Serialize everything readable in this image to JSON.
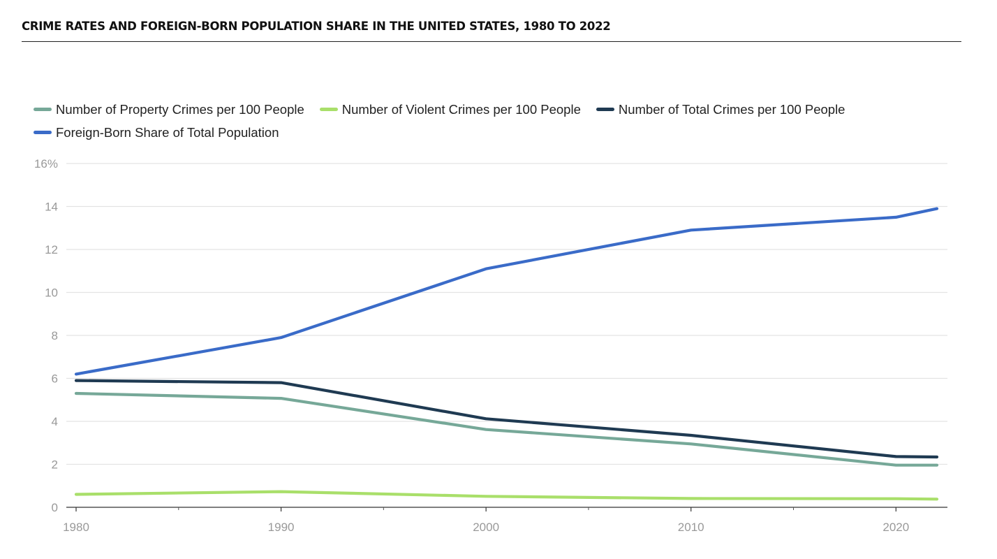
{
  "header": {
    "title": "CRIME RATES AND FOREIGN-BORN POPULATION SHARE IN THE UNITED STATES, 1980 TO 2022"
  },
  "colors": {
    "property": "#76a898",
    "violent": "#a9df6a",
    "total": "#1f3a52",
    "foreign_born": "#3a6bc8",
    "grid": "#e3e3e3",
    "axis_text": "#999999"
  },
  "chart_data": {
    "type": "line",
    "title": "CRIME RATES AND FOREIGN-BORN POPULATION SHARE IN THE UNITED STATES, 1980 TO 2022",
    "xlabel": "",
    "ylabel": "",
    "xlim": [
      1980,
      2022
    ],
    "ylim": [
      0,
      16
    ],
    "x_ticks": [
      1980,
      1990,
      2000,
      2010,
      2020
    ],
    "x_minor_ticks": [
      1985,
      1995,
      2005,
      2015
    ],
    "y_ticks": [
      0,
      2,
      4,
      6,
      8,
      10,
      12,
      14,
      16
    ],
    "y_tick_labels": [
      "0",
      "2",
      "4",
      "6",
      "8",
      "10",
      "12",
      "14",
      "16%"
    ],
    "grid": true,
    "legend_position": "top-left",
    "series": [
      {
        "name": "Number of Property Crimes per 100 People",
        "color_key": "property",
        "x": [
          1980,
          1990,
          2000,
          2010,
          2020,
          2022
        ],
        "y": [
          5.3,
          5.07,
          3.62,
          2.95,
          1.96,
          1.96
        ]
      },
      {
        "name": "Number of Violent Crimes per 100 People",
        "color_key": "violent",
        "x": [
          1980,
          1990,
          2000,
          2010,
          2020,
          2022
        ],
        "y": [
          0.6,
          0.73,
          0.51,
          0.41,
          0.4,
          0.38
        ]
      },
      {
        "name": "Number of Total Crimes per 100 People",
        "color_key": "total",
        "x": [
          1980,
          1990,
          2000,
          2010,
          2020,
          2022
        ],
        "y": [
          5.9,
          5.8,
          4.12,
          3.35,
          2.36,
          2.34
        ]
      },
      {
        "name": "Foreign-Born Share of Total Population",
        "color_key": "foreign_born",
        "x": [
          1980,
          1990,
          2000,
          2010,
          2020,
          2022
        ],
        "y": [
          6.2,
          7.9,
          11.1,
          12.9,
          13.5,
          13.9
        ]
      }
    ]
  }
}
